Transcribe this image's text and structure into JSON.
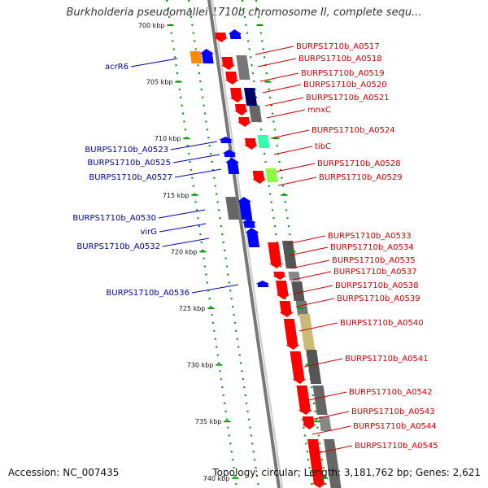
{
  "title": "Burkholderia pseudomallei 1710b chromosome II, complete sequ...",
  "footer": {
    "accession": "Accession: NC_007435",
    "topology": "Topology: circular; Length: 3,181,762 bp; Genes: 2,621"
  },
  "colors": {
    "forward": "#ff0000",
    "reverse": "#0000ff",
    "backbone": "#888888",
    "guide_dots": "#009900",
    "label_fwd": "#cc0000",
    "label_rev": "#000099"
  },
  "ticks": [
    "700 kbp",
    "705 kbp",
    "710 kbp",
    "715 kbp",
    "720 kbp",
    "725 kbp",
    "730 kbp",
    "735 kbp",
    "740 kbp"
  ],
  "reverse_labels": [
    "acrR6",
    "BURPS1710b_A0523",
    "BURPS1710b_A0525",
    "BURPS1710b_A0527",
    "BURPS1710b_A0530",
    "virG",
    "BURPS1710b_A0532",
    "BURPS1710b_A0536"
  ],
  "forward_labels": [
    "BURPS1710b_A0517",
    "BURPS1710b_A0518",
    "BURPS1710b_A0519",
    "BURPS1710b_A0520",
    "BURPS1710b_A0521",
    "mnxC",
    "BURPS1710b_A0524",
    "tibC",
    "BURPS1710b_A0528",
    "BURPS1710b_A0529",
    "BURPS1710b_A0533",
    "BURPS1710b_A0534",
    "BURPS1710b_A0535",
    "BURPS1710b_A0537",
    "BURPS1710b_A0538",
    "BURPS1710b_A0539",
    "BURPS1710b_A0540",
    "BURPS1710b_A0541",
    "BURPS1710b_A0542",
    "BURPS1710b_A0543",
    "BURPS1710b_A0544",
    "BURPS1710b_A0545"
  ]
}
